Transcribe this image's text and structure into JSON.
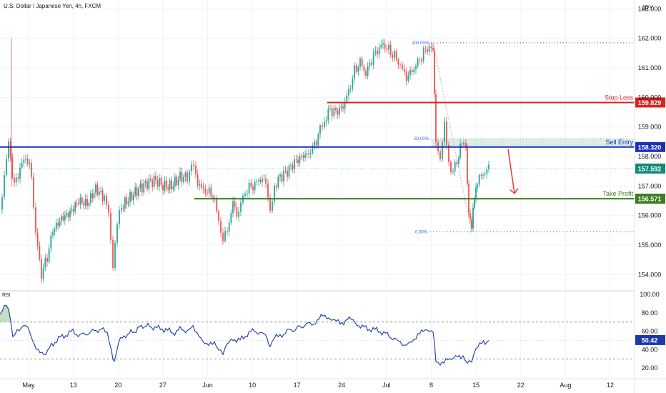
{
  "header": {
    "title": "U.S. Dollar / Japanese Yen, 4h, FXCM",
    "currency": "JPY"
  },
  "colors": {
    "up": "#26a69a",
    "down": "#ef5350",
    "stop_loss": "#e0201e",
    "sell_entry": "#1a2fb8",
    "take_profit": "#3b7d1f",
    "price_badge": "#138a75",
    "fib": "#2962ff",
    "rsi": "#1a3aa8",
    "arrow": "#e53935"
  },
  "chart_data": {
    "type": "candlestick",
    "symbol": "U.S. Dollar / Japanese Yen",
    "timeframe": "4h",
    "source": "FXCM",
    "price_axis": {
      "ticks": [
        "163.000",
        "162.000",
        "161.000",
        "160.000",
        "159.000",
        "158.000",
        "157.000",
        "156.000",
        "155.000",
        "154.000"
      ],
      "ylim": [
        153.5,
        163.3
      ]
    },
    "time_axis": {
      "ticks": [
        "May",
        "13",
        "20",
        "27",
        "Jun",
        "10",
        "17",
        "24",
        "Jul",
        "8",
        "15",
        "22",
        "Aug",
        "12"
      ]
    },
    "levels": [
      {
        "name": "Stop Loss",
        "price": 159.829,
        "label": "159.829"
      },
      {
        "name": "Sell Entry",
        "price": 158.32,
        "label": "158.320"
      },
      {
        "name": "Take Profit",
        "price": 156.571,
        "label": "156.571"
      }
    ],
    "current_price": {
      "price": 157.592,
      "label": "157.592"
    },
    "fibonacci": [
      {
        "label": "100.00%",
        "price": 161.85
      },
      {
        "label": "50.00%",
        "price": 158.6
      },
      {
        "label": "0.00%",
        "price": 155.45
      }
    ],
    "price_path": [
      [
        0,
        156.2
      ],
      [
        6,
        157.4
      ],
      [
        12,
        158.4
      ],
      [
        20,
        157.0
      ],
      [
        28,
        157.6
      ],
      [
        36,
        158.0
      ],
      [
        44,
        157.4
      ],
      [
        50,
        155.4
      ],
      [
        58,
        154.0
      ],
      [
        66,
        154.6
      ],
      [
        74,
        155.5
      ],
      [
        86,
        155.9
      ],
      [
        98,
        156.1
      ],
      [
        110,
        156.5
      ],
      [
        122,
        156.4
      ],
      [
        134,
        156.9
      ],
      [
        146,
        156.6
      ],
      [
        152,
        156.0
      ],
      [
        158,
        154.4
      ],
      [
        164,
        155.7
      ],
      [
        170,
        156.3
      ],
      [
        182,
        156.6
      ],
      [
        194,
        156.9
      ],
      [
        206,
        157.1
      ],
      [
        218,
        157.2
      ],
      [
        228,
        157.0
      ],
      [
        240,
        157.0
      ],
      [
        252,
        157.3
      ],
      [
        262,
        157.3
      ],
      [
        268,
        157.8
      ],
      [
        274,
        157.3
      ],
      [
        282,
        156.9
      ],
      [
        290,
        156.8
      ],
      [
        298,
        156.7
      ],
      [
        306,
        155.9
      ],
      [
        312,
        155.1
      ],
      [
        318,
        155.5
      ],
      [
        326,
        156.4
      ],
      [
        334,
        156.0
      ],
      [
        340,
        156.7
      ],
      [
        346,
        156.9
      ],
      [
        354,
        157.0
      ],
      [
        362,
        157.2
      ],
      [
        372,
        157.2
      ],
      [
        378,
        156.0
      ],
      [
        384,
        157.0
      ],
      [
        392,
        157.3
      ],
      [
        402,
        157.5
      ],
      [
        412,
        157.8
      ],
      [
        422,
        158.0
      ],
      [
        432,
        158.1
      ],
      [
        440,
        158.4
      ],
      [
        448,
        158.9
      ],
      [
        454,
        159.2
      ],
      [
        462,
        159.6
      ],
      [
        470,
        159.5
      ],
      [
        480,
        159.7
      ],
      [
        488,
        160.2
      ],
      [
        496,
        160.9
      ],
      [
        504,
        161.2
      ],
      [
        512,
        160.8
      ],
      [
        520,
        161.3
      ],
      [
        528,
        161.6
      ],
      [
        536,
        161.8
      ],
      [
        544,
        161.6
      ],
      [
        552,
        161.4
      ],
      [
        560,
        161.1
      ],
      [
        566,
        160.7
      ],
      [
        574,
        160.8
      ],
      [
        582,
        161.1
      ],
      [
        590,
        161.4
      ],
      [
        598,
        161.7
      ],
      [
        606,
        161.6
      ],
      [
        610,
        158.5
      ],
      [
        616,
        158.0
      ],
      [
        622,
        159.0
      ],
      [
        628,
        157.8
      ],
      [
        634,
        157.5
      ],
      [
        642,
        158.0
      ],
      [
        646,
        158.6
      ],
      [
        652,
        158.3
      ],
      [
        656,
        156.0
      ],
      [
        660,
        155.7
      ],
      [
        664,
        156.6
      ],
      [
        668,
        157.2
      ],
      [
        676,
        157.4
      ],
      [
        684,
        157.6
      ]
    ],
    "rsi": {
      "label": "RSI",
      "axis_ticks": [
        "100.00",
        "80.00",
        "60.00",
        "40.00",
        "20.00"
      ],
      "ylim": [
        10,
        100
      ],
      "bands": [
        70,
        30
      ],
      "current": {
        "value": 50.42,
        "label": "50.42"
      },
      "path": [
        [
          0,
          77
        ],
        [
          6,
          88
        ],
        [
          12,
          85
        ],
        [
          18,
          54
        ],
        [
          24,
          60
        ],
        [
          30,
          63
        ],
        [
          36,
          67
        ],
        [
          42,
          58
        ],
        [
          48,
          44
        ],
        [
          56,
          40
        ],
        [
          64,
          33
        ],
        [
          72,
          45
        ],
        [
          82,
          52
        ],
        [
          92,
          56
        ],
        [
          102,
          60
        ],
        [
          112,
          55
        ],
        [
          122,
          58
        ],
        [
          132,
          60
        ],
        [
          142,
          63
        ],
        [
          150,
          56
        ],
        [
          156,
          38
        ],
        [
          160,
          26
        ],
        [
          166,
          48
        ],
        [
          176,
          56
        ],
        [
          188,
          60
        ],
        [
          200,
          66
        ],
        [
          212,
          65
        ],
        [
          222,
          63
        ],
        [
          232,
          62
        ],
        [
          242,
          58
        ],
        [
          252,
          62
        ],
        [
          262,
          61
        ],
        [
          270,
          63
        ],
        [
          276,
          55
        ],
        [
          284,
          50
        ],
        [
          292,
          47
        ],
        [
          300,
          45
        ],
        [
          306,
          38
        ],
        [
          312,
          34
        ],
        [
          318,
          44
        ],
        [
          326,
          52
        ],
        [
          336,
          50
        ],
        [
          346,
          57
        ],
        [
          356,
          61
        ],
        [
          366,
          57
        ],
        [
          374,
          53
        ],
        [
          378,
          41
        ],
        [
          384,
          52
        ],
        [
          392,
          55
        ],
        [
          402,
          60
        ],
        [
          412,
          62
        ],
        [
          424,
          66
        ],
        [
          434,
          68
        ],
        [
          444,
          70
        ],
        [
          452,
          77
        ],
        [
          460,
          76
        ],
        [
          468,
          71
        ],
        [
          476,
          68
        ],
        [
          486,
          73
        ],
        [
          494,
          71
        ],
        [
          502,
          67
        ],
        [
          512,
          63
        ],
        [
          522,
          62
        ],
        [
          532,
          60
        ],
        [
          542,
          56
        ],
        [
          552,
          52
        ],
        [
          560,
          46
        ],
        [
          566,
          42
        ],
        [
          574,
          50
        ],
        [
          582,
          53
        ],
        [
          590,
          58
        ],
        [
          598,
          63
        ],
        [
          606,
          61
        ],
        [
          610,
          28
        ],
        [
          616,
          26
        ],
        [
          624,
          30
        ],
        [
          632,
          27
        ],
        [
          640,
          35
        ],
        [
          648,
          33
        ],
        [
          654,
          27
        ],
        [
          660,
          29
        ],
        [
          666,
          42
        ],
        [
          674,
          46
        ],
        [
          684,
          50
        ]
      ]
    }
  }
}
